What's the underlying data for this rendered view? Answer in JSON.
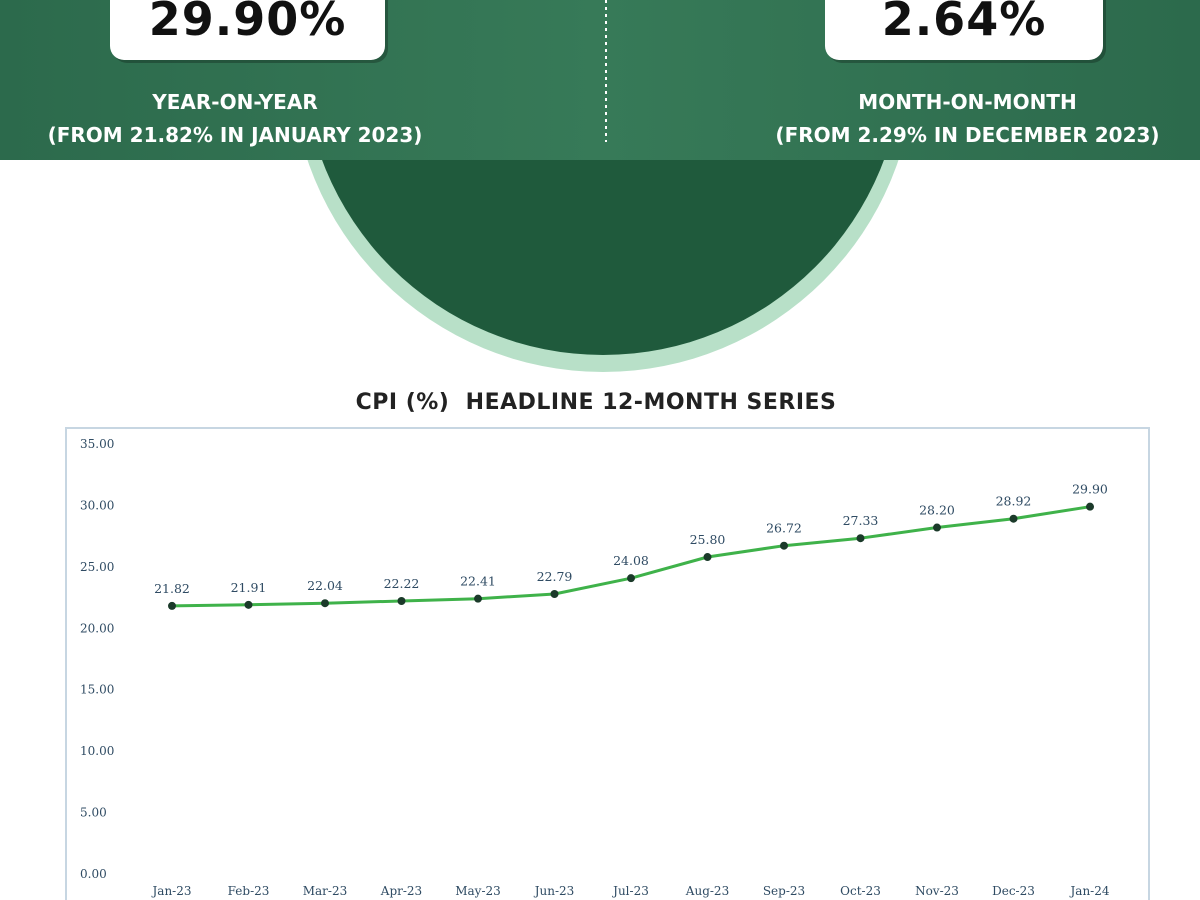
{
  "header": {
    "yoy": {
      "value": "29.90%",
      "label": "YEAR-ON-YEAR",
      "sub": "(FROM 21.82% IN JANUARY 2023)"
    },
    "mom": {
      "value": "2.64%",
      "label": "MONTH-ON-MONTH",
      "sub": "(FROM 2.29% IN DECEMBER 2023)"
    }
  },
  "colors": {
    "banner_green": "#2f6e50",
    "circle_green": "#1f5a3c",
    "ring_mint": "#b8e0c8",
    "line_green": "#3fb24a",
    "marker": "#1b3a2a"
  },
  "chart_data": {
    "type": "line",
    "title": "CPI (%)  HEADLINE 12-MONTH SERIES",
    "categories": [
      "Jan-23",
      "Feb-23",
      "Mar-23",
      "Apr-23",
      "May-23",
      "Jun-23",
      "Jul-23",
      "Aug-23",
      "Sep-23",
      "Oct-23",
      "Nov-23",
      "Dec-23",
      "Jan-24"
    ],
    "values": [
      21.82,
      21.91,
      22.04,
      22.22,
      22.41,
      22.79,
      24.08,
      25.8,
      26.72,
      27.33,
      28.2,
      28.92,
      29.9
    ],
    "value_labels": [
      "21.82",
      "21.91",
      "22.04",
      "22.22",
      "22.41",
      "22.79",
      "24.08",
      "25.80",
      "26.72",
      "27.33",
      "28.20",
      "28.92",
      "29.90"
    ],
    "yticks": [
      "0.00",
      "5.00",
      "10.00",
      "15.00",
      "20.00",
      "25.00",
      "30.00",
      "35.00"
    ],
    "ylim": [
      0,
      35
    ],
    "grid": false,
    "legend": "none"
  }
}
